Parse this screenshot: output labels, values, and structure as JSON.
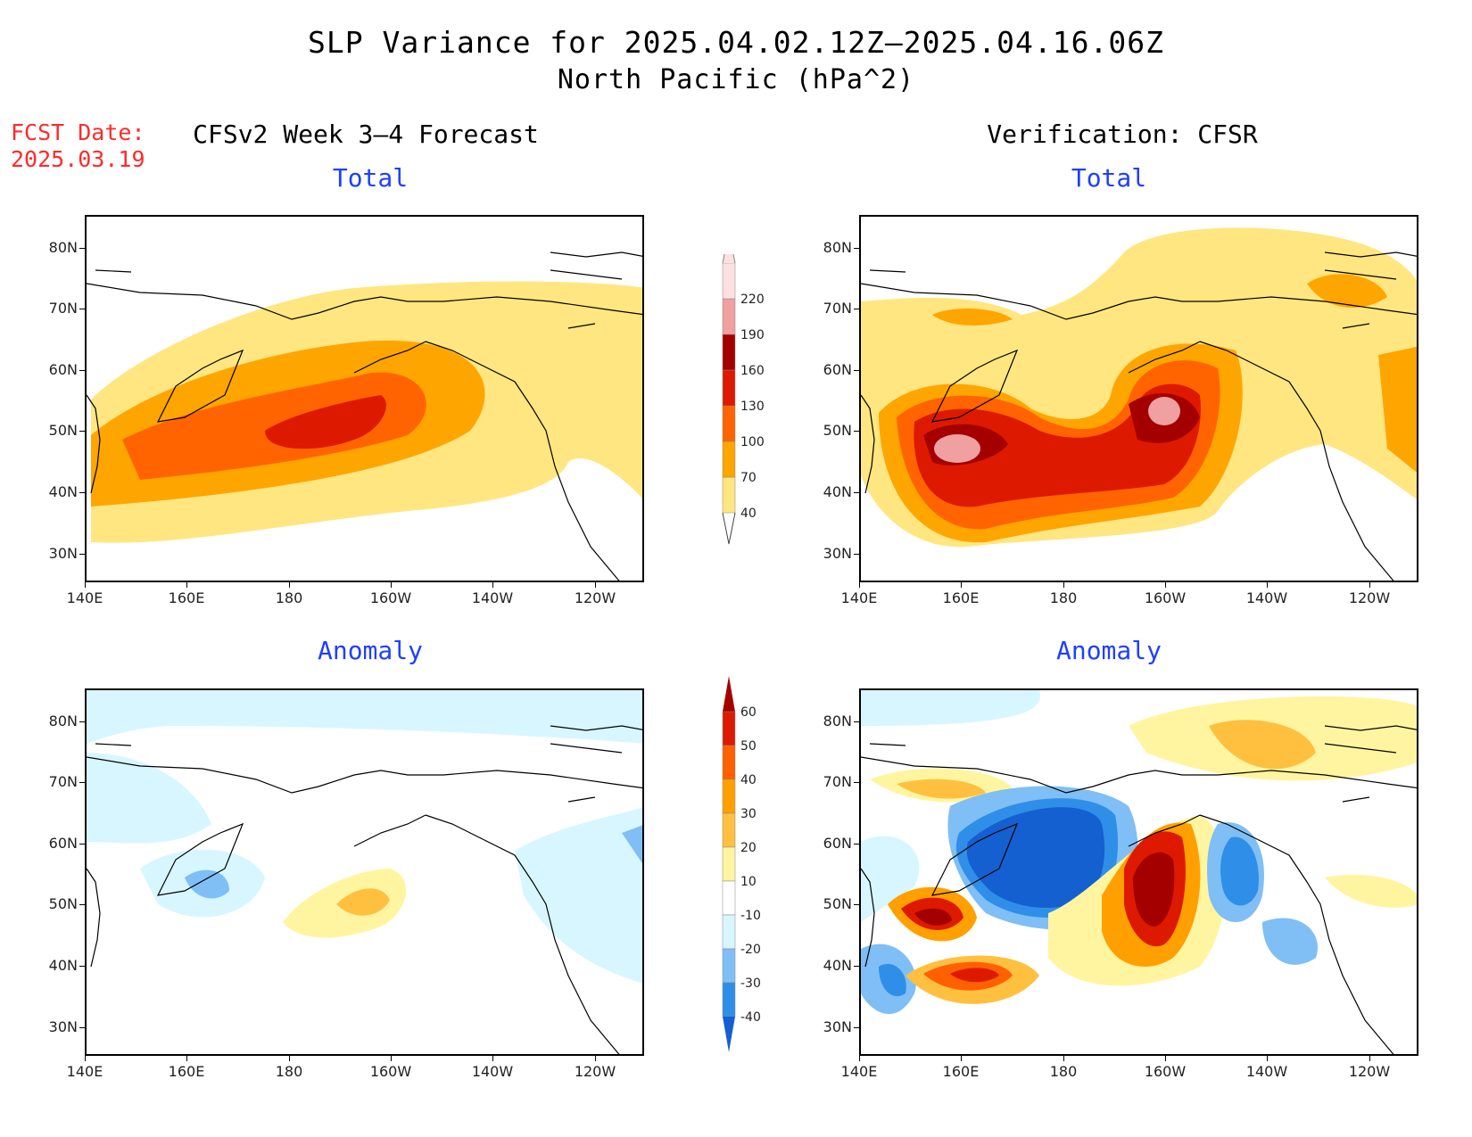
{
  "header": {
    "title_line1": "SLP Variance for 2025.04.02.12Z–2025.04.16.06Z",
    "title_line2": "North Pacific (hPa^2)",
    "fcst_label": "FCST Date:",
    "fcst_date": "2025.03.19"
  },
  "columns": {
    "left_title": "CFSv2 Week 3–4 Forecast",
    "right_title": "Verification: CFSR"
  },
  "panels": {
    "total_title": "Total",
    "anomaly_title": "Anomaly"
  },
  "axes": {
    "lat_labels": [
      "80N",
      "70N",
      "60N",
      "50N",
      "40N",
      "30N"
    ],
    "lon_labels": [
      "140E",
      "160E",
      "180",
      "160W",
      "140W",
      "120W"
    ]
  },
  "colorbar_total": {
    "levels": [
      "40",
      "70",
      "100",
      "130",
      "160",
      "190",
      "220"
    ],
    "colors": [
      "#ffe680",
      "#ffa500",
      "#ff6400",
      "#dd1a00",
      "#a50000",
      "#f0a0a0",
      "#fde0e0"
    ]
  },
  "colorbar_anomaly": {
    "levels": [
      "-40",
      "-30",
      "-20",
      "-10",
      "10",
      "20",
      "30",
      "40",
      "50",
      "60"
    ],
    "colors": [
      "#1560d0",
      "#2f8fe8",
      "#7fbff5",
      "#d8f6ff",
      "#ffffff",
      "#fff5a0",
      "#ffc040",
      "#ffa000",
      "#ff6000",
      "#dd1a00",
      "#a50000"
    ]
  },
  "colors": {
    "title_blue": "#1f3fff",
    "fcst_red": "#ff2a2a"
  }
}
